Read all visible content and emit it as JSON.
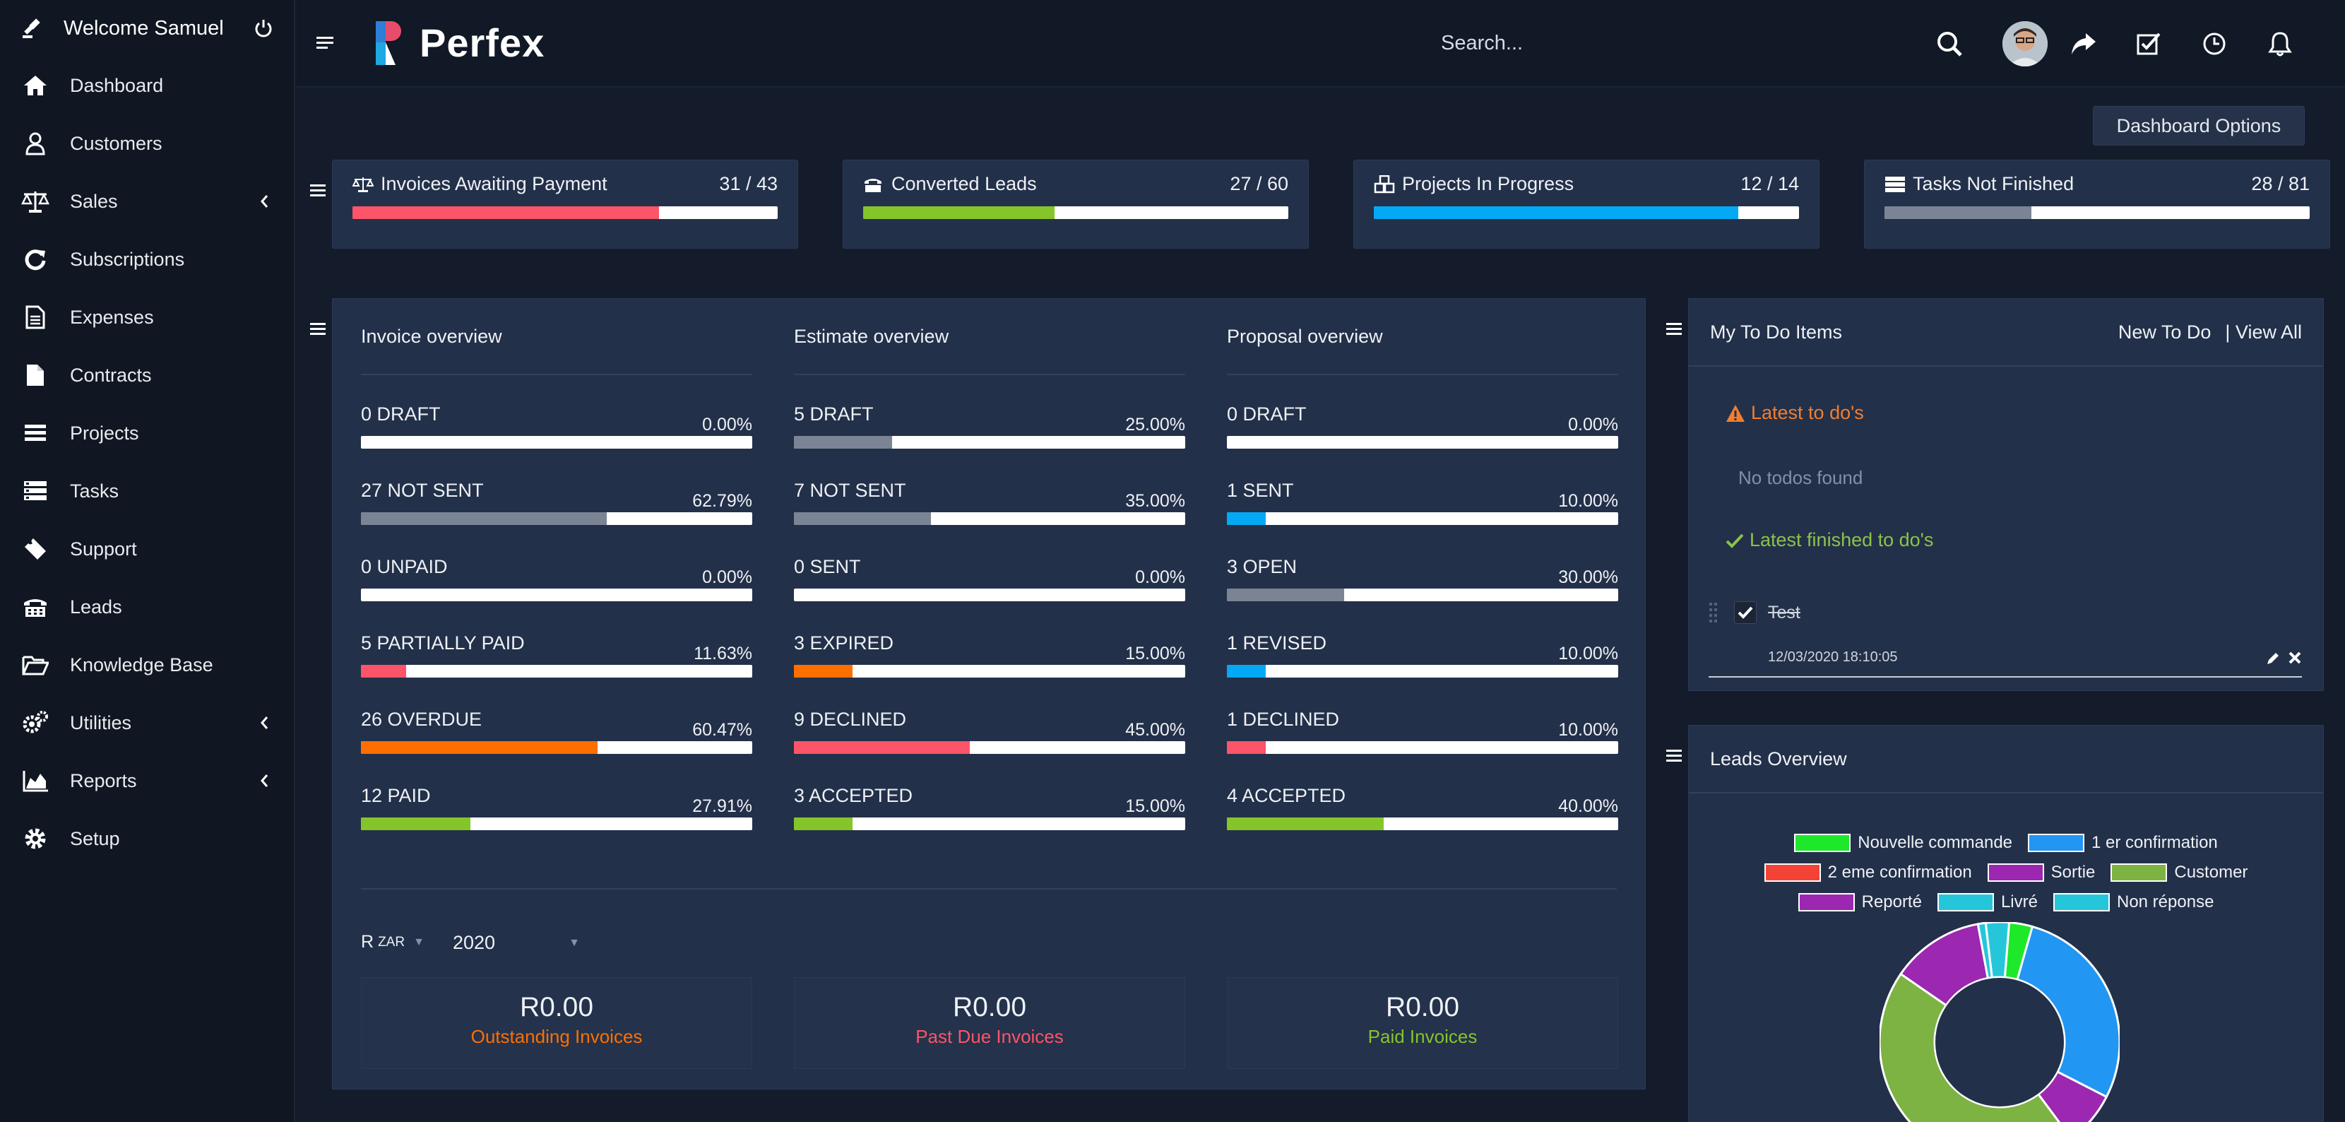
{
  "sidebar": {
    "welcome": "Welcome Samuel",
    "items": [
      {
        "label": "Dashboard",
        "icon": "home-icon",
        "chevron": false
      },
      {
        "label": "Customers",
        "icon": "user-icon",
        "chevron": false
      },
      {
        "label": "Sales",
        "icon": "balance-scale-icon",
        "chevron": true
      },
      {
        "label": "Subscriptions",
        "icon": "refresh-icon",
        "chevron": false
      },
      {
        "label": "Expenses",
        "icon": "file-text-icon",
        "chevron": false
      },
      {
        "label": "Contracts",
        "icon": "file-icon",
        "chevron": false
      },
      {
        "label": "Projects",
        "icon": "bars-icon",
        "chevron": false
      },
      {
        "label": "Tasks",
        "icon": "tasks-icon",
        "chevron": false
      },
      {
        "label": "Support",
        "icon": "ticket-icon",
        "chevron": false
      },
      {
        "label": "Leads",
        "icon": "tty-icon",
        "chevron": false
      },
      {
        "label": "Knowledge Base",
        "icon": "folder-open-icon",
        "chevron": false
      },
      {
        "label": "Utilities",
        "icon": "cogs-icon",
        "chevron": true
      },
      {
        "label": "Reports",
        "icon": "area-chart-icon",
        "chevron": true
      },
      {
        "label": "Setup",
        "icon": "gear-icon",
        "chevron": false
      }
    ]
  },
  "header": {
    "logo_text": "Perfex",
    "search_placeholder": "Search..."
  },
  "dashboard_options_label": "Dashboard Options",
  "stats": [
    {
      "title": "Invoices Awaiting Payment",
      "value": "31 / 43",
      "fraction": 0.7209,
      "color": "#fc5468"
    },
    {
      "title": "Converted Leads",
      "value": "27 / 60",
      "fraction": 0.45,
      "color": "#84c529"
    },
    {
      "title": "Projects In Progress",
      "value": "12 / 14",
      "fraction": 0.8571,
      "color": "#03a9f4"
    },
    {
      "title": "Tasks Not Finished",
      "value": "28 / 81",
      "fraction": 0.3457,
      "color": "#7b8494"
    }
  ],
  "overview": {
    "columns": [
      {
        "title": "Invoice overview",
        "rows": [
          {
            "label": "0 DRAFT",
            "pct": "0.00%",
            "value": 0,
            "color": "#7b8494"
          },
          {
            "label": "27 NOT SENT",
            "pct": "62.79%",
            "value": 62.79,
            "color": "#7b8494"
          },
          {
            "label": "0 UNPAID",
            "pct": "0.00%",
            "value": 0,
            "color": "#fc5468"
          },
          {
            "label": "5 PARTIALLY PAID",
            "pct": "11.63%",
            "value": 11.63,
            "color": "#fc5468"
          },
          {
            "label": "26 OVERDUE",
            "pct": "60.47%",
            "value": 60.47,
            "color": "#ff6f00"
          },
          {
            "label": "12 PAID",
            "pct": "27.91%",
            "value": 27.91,
            "color": "#84c529"
          }
        ],
        "total_amount": "R0.00",
        "total_label": "Outstanding Invoices",
        "total_color": "#ff6f00"
      },
      {
        "title": "Estimate overview",
        "rows": [
          {
            "label": "5 DRAFT",
            "pct": "25.00%",
            "value": 25,
            "color": "#7b8494"
          },
          {
            "label": "7 NOT SENT",
            "pct": "35.00%",
            "value": 35,
            "color": "#7b8494"
          },
          {
            "label": "0 SENT",
            "pct": "0.00%",
            "value": 0,
            "color": "#03a9f4"
          },
          {
            "label": "3 EXPIRED",
            "pct": "15.00%",
            "value": 15,
            "color": "#ff6f00"
          },
          {
            "label": "9 DECLINED",
            "pct": "45.00%",
            "value": 45,
            "color": "#fc5468"
          },
          {
            "label": "3 ACCEPTED",
            "pct": "15.00%",
            "value": 15,
            "color": "#84c529"
          }
        ],
        "total_amount": "R0.00",
        "total_label": "Past Due Invoices",
        "total_color": "#fc5468"
      },
      {
        "title": "Proposal overview",
        "rows": [
          {
            "label": "0 DRAFT",
            "pct": "0.00%",
            "value": 0,
            "color": "#7b8494"
          },
          {
            "label": "1 SENT",
            "pct": "10.00%",
            "value": 10,
            "color": "#03a9f4"
          },
          {
            "label": "3 OPEN",
            "pct": "30.00%",
            "value": 30,
            "color": "#7b8494"
          },
          {
            "label": "1 REVISED",
            "pct": "10.00%",
            "value": 10,
            "color": "#03a9f4"
          },
          {
            "label": "1 DECLINED",
            "pct": "10.00%",
            "value": 10,
            "color": "#fc5468"
          },
          {
            "label": "4 ACCEPTED",
            "pct": "40.00%",
            "value": 40,
            "color": "#84c529"
          }
        ],
        "total_amount": "R0.00",
        "total_label": "Paid Invoices",
        "total_color": "#84c529"
      }
    ],
    "currency": "R",
    "currency_code": "ZAR",
    "year": "2020"
  },
  "todo": {
    "title": "My To Do Items",
    "new_label": "New To Do",
    "view_all_label": "| View All",
    "latest_label": "Latest to do's",
    "no_todos": "No todos found",
    "finished_label": "Latest finished to do's",
    "items": [
      {
        "text": "Test",
        "date": "12/03/2020 18:10:05"
      }
    ]
  },
  "leads": {
    "title": "Leads Overview"
  },
  "chart_data": {
    "type": "pie",
    "legend": [
      "Nouvelle commande",
      "1 er confirmation",
      "2 eme confirmation",
      "Sortie",
      "Customer",
      "Reporté",
      "Livré",
      "Non réponse"
    ],
    "colors": [
      "#1ee82a",
      "#2196f3",
      "#f44336",
      "#9c27b0",
      "#7cb342",
      "#9c27b0",
      "#26c6da",
      "#26c6da"
    ],
    "values": [
      3,
      27,
      0,
      7,
      43,
      12,
      1,
      3
    ]
  }
}
